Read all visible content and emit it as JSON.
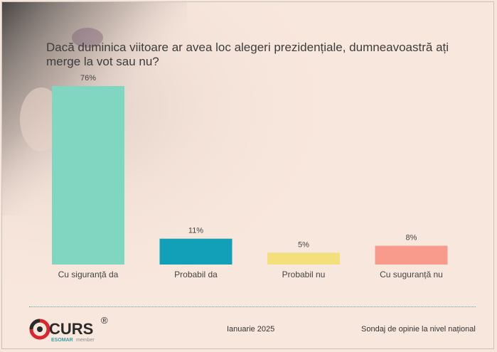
{
  "chart_data": {
    "type": "bar",
    "title": "Dacă duminica viitoare ar avea loc alegeri prezidențiale, dumneavoastră ați merge la vot sau nu?",
    "categories": [
      "Cu siguranță da",
      "Probabil da",
      "Probabil nu",
      "Cu suguranță nu"
    ],
    "values": [
      76,
      11,
      5,
      8
    ],
    "value_labels": [
      "76%",
      "11%",
      "5%",
      "8%"
    ],
    "colors": [
      "#80d6c1",
      "#12a0b8",
      "#f3e07d",
      "#f89a8c"
    ],
    "unit": "%",
    "ylim": [
      0,
      76
    ],
    "grid": false,
    "legend": "none"
  },
  "footer": {
    "logo_text": "CURS",
    "logo_reg": "®",
    "logo_sub": "ESOMAR",
    "logo_member": "member",
    "date": "Ianuarie 2025",
    "source": "Sondaj de opinie la nivel național"
  }
}
